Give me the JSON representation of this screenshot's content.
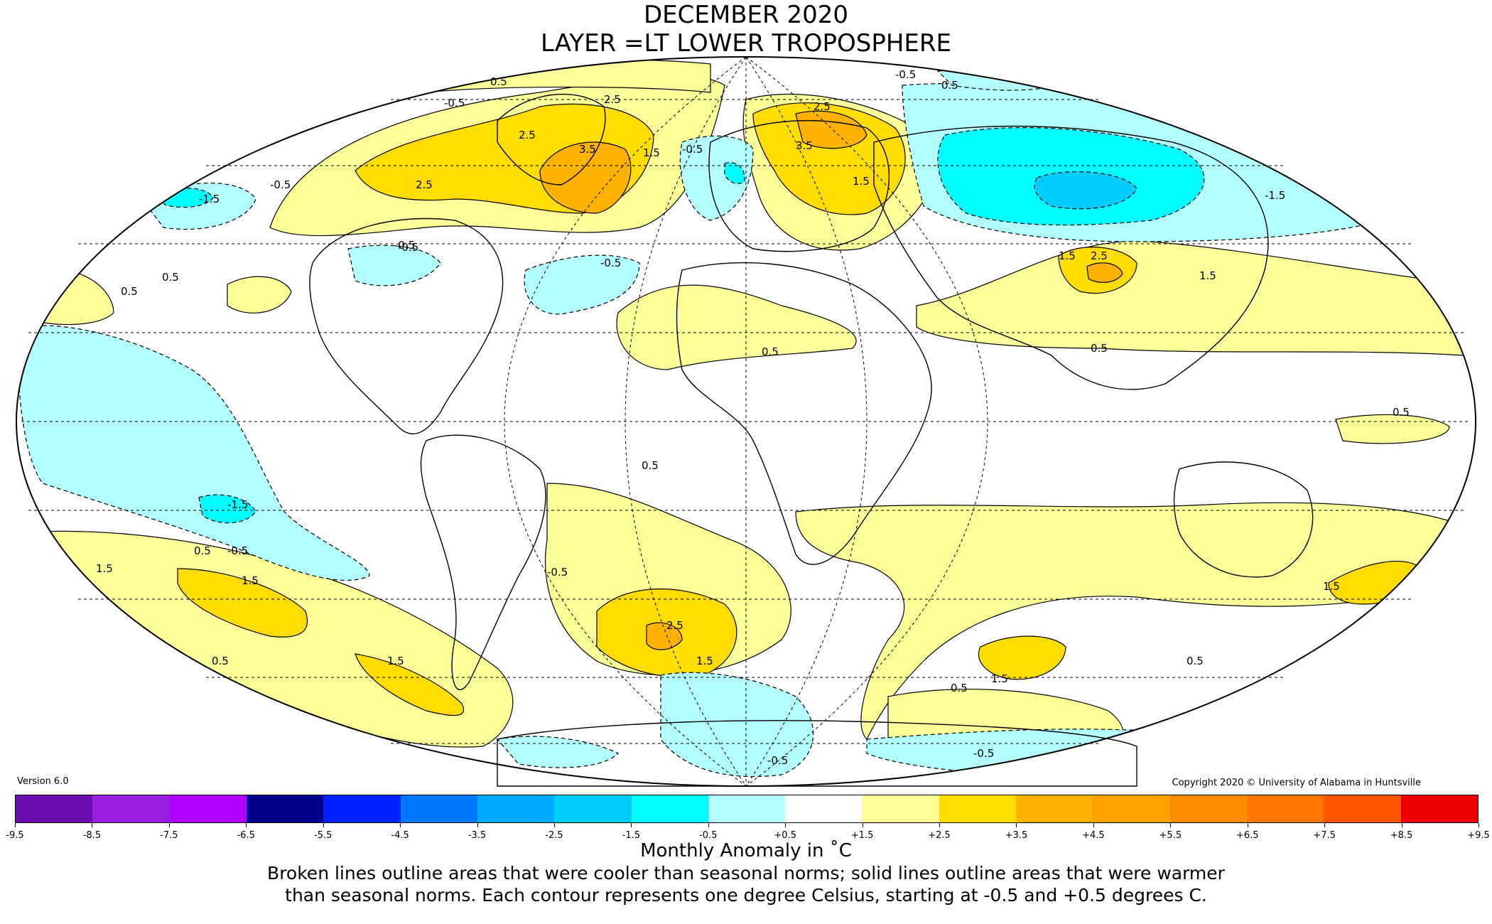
{
  "title": "DECEMBER 2020",
  "subtitle": "LAYER =LT LOWER TROPOSPHERE",
  "version": "Version 6.0",
  "copyright": "Copyright 2020 © University of Alabama in Huntsville",
  "units_label": "Monthly Anomaly in ˚C",
  "note_line1": "Broken lines outline areas that were cooler than seasonal norms; solid lines outline areas that were warmer",
  "note_line2": "than seasonal norms. Each contour represents one degree Celsius, starting at -0.5 and +0.5 degrees C.",
  "colorbar": {
    "ticks": [
      "-9.5",
      "-8.5",
      "-7.5",
      "-6.5",
      "-5.5",
      "-4.5",
      "-3.5",
      "-2.5",
      "-1.5",
      "-0.5",
      "+0.5",
      "+1.5",
      "+2.5",
      "+3.5",
      "+4.5",
      "+5.5",
      "+6.5",
      "+7.5",
      "+8.5",
      "+9.5"
    ],
    "colors": [
      "#2e0854",
      "#6a0dad",
      "#9b1ee0",
      "#b000ff",
      "#00008b",
      "#0022ff",
      "#0077ff",
      "#00aaff",
      "#00ccff",
      "#00ffff",
      "#b3ffff",
      "#ffffff",
      "#ffff99",
      "#ffdd00",
      "#ffb300",
      "#ffa200",
      "#ff8c00",
      "#ff7700",
      "#ff5500",
      "#ee0000",
      "#c00000"
    ]
  },
  "contour_labels": [
    "0.5",
    "-0.5",
    "2.5",
    "3.5",
    "2.5",
    "1.5",
    "-1.5",
    "2.5",
    "-0.5",
    "0.5",
    "-0.5",
    "0.5",
    "2.5",
    "1.5",
    "3.5",
    "-0.5",
    "-1.5",
    "-0.5",
    "1.5",
    "2.5",
    "1.5",
    "0.5",
    "-0.5",
    "0.5",
    "0.5",
    "0.5",
    "-0.5",
    "-0.5",
    "-1.5",
    "0.5",
    "-0.5",
    "1.5",
    "1.5",
    "2.5",
    "1.5",
    "1.5",
    "0.5",
    "0.5",
    "1.5",
    "0.5",
    "1.5",
    "-0.5",
    "-0.5",
    "0.5"
  ]
}
